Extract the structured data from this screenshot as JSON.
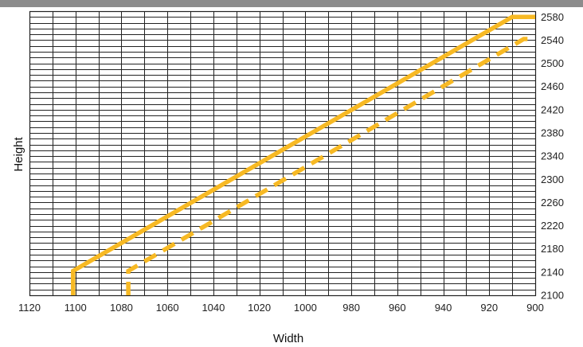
{
  "chart_data": {
    "type": "line",
    "title": "",
    "xlabel": "Width",
    "ylabel": "Height",
    "x_axis_reversed": true,
    "xlim": [
      1120,
      900
    ],
    "ylim": [
      2100,
      2590
    ],
    "x_ticks": [
      1120,
      1100,
      1080,
      1060,
      1040,
      1020,
      1000,
      980,
      960,
      940,
      920,
      900
    ],
    "y_ticks": [
      2100,
      2140,
      2180,
      2220,
      2260,
      2300,
      2340,
      2380,
      2420,
      2460,
      2500,
      2540,
      2580
    ],
    "y_tick_position": "right",
    "grid": true,
    "legend": "none",
    "series": [
      {
        "style": "solid",
        "color": "#f7b924",
        "points": [
          [
            1101,
            2100
          ],
          [
            1101,
            2142
          ],
          [
            910,
            2580
          ],
          [
            900,
            2580
          ]
        ]
      },
      {
        "style": "dashed",
        "color": "#f7b924",
        "points": [
          [
            1077,
            2100
          ],
          [
            1077,
            2142
          ],
          [
            905,
            2542
          ],
          [
            900,
            2542
          ]
        ]
      }
    ]
  },
  "colors": {
    "header_bar": "#8c8c8c",
    "grid": "#222222",
    "line": "#f7b924"
  }
}
